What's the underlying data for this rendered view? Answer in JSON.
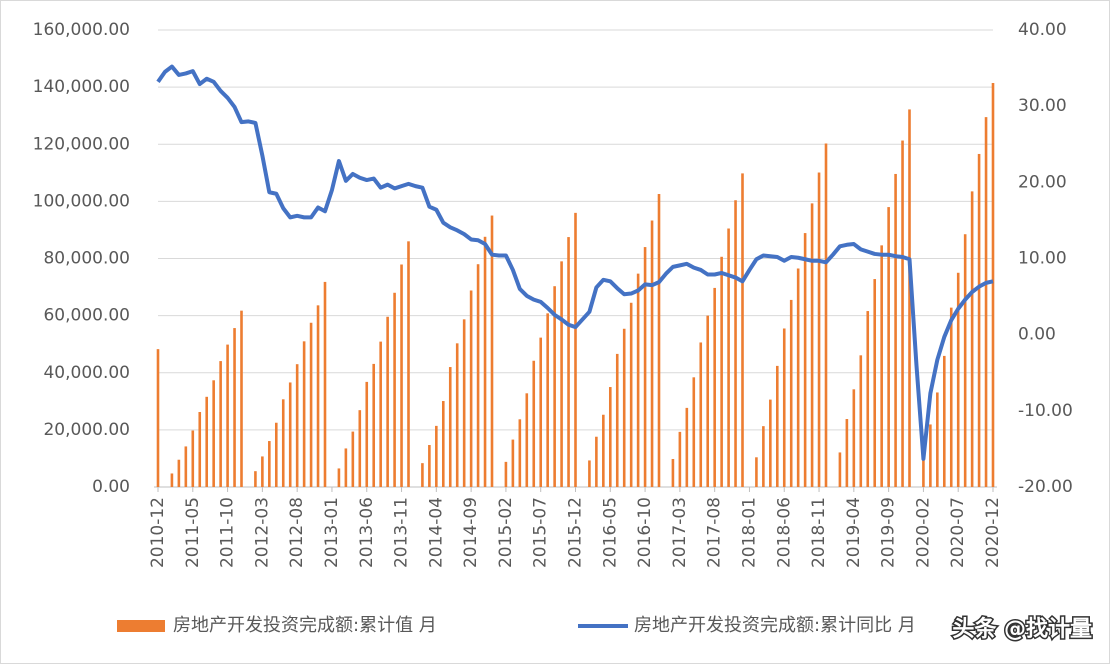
{
  "chart_data": {
    "type": "combo",
    "categories": [
      "2010-12",
      null,
      null,
      null,
      null,
      "2011-05",
      null,
      null,
      null,
      null,
      "2011-10",
      null,
      null,
      null,
      null,
      "2012-03",
      null,
      null,
      null,
      null,
      "2012-08",
      null,
      null,
      null,
      null,
      "2013-01",
      null,
      null,
      null,
      null,
      "2013-06",
      null,
      null,
      null,
      null,
      "2013-11",
      null,
      null,
      null,
      null,
      "2014-04",
      null,
      null,
      null,
      null,
      "2014-09",
      null,
      null,
      null,
      null,
      "2015-02",
      null,
      null,
      null,
      null,
      "2015-07",
      null,
      null,
      null,
      null,
      "2015-12",
      null,
      null,
      null,
      null,
      "2016-05",
      null,
      null,
      null,
      null,
      "2016-10",
      null,
      null,
      null,
      null,
      "2017-03",
      null,
      null,
      null,
      null,
      "2017-08",
      null,
      null,
      null,
      null,
      "2018-01",
      null,
      null,
      null,
      null,
      "2018-06",
      null,
      null,
      null,
      null,
      "2018-11",
      null,
      null,
      null,
      null,
      "2019-04",
      null,
      null,
      null,
      null,
      "2019-09",
      null,
      null,
      null,
      null,
      "2020-02",
      null,
      null,
      null,
      null,
      "2020-07",
      null,
      null,
      null,
      null,
      "2020-12"
    ],
    "series": [
      {
        "name": "房地产开发投资完成额:累计值 月",
        "type": "bar",
        "color": "#ed7d31",
        "values": [
          48267,
          null,
          4738,
          9547,
          14205,
          19776,
          26256,
          31575,
          37359,
          44082,
          49860,
          55642,
          61740,
          null,
          5538,
          10700,
          16090,
          22500,
          30700,
          36600,
          43000,
          51000,
          57500,
          63600,
          71804,
          null,
          6500,
          13500,
          19400,
          26900,
          36800,
          43100,
          50900,
          59600,
          68000,
          77900,
          86013,
          null,
          8350,
          14700,
          21400,
          30100,
          42000,
          50300,
          58700,
          68800,
          78000,
          87600,
          95036,
          null,
          8800,
          16600,
          23700,
          32800,
          44200,
          52300,
          60800,
          70300,
          79000,
          87500,
          95979,
          null,
          9300,
          17600,
          25300,
          35000,
          46600,
          55400,
          64500,
          74700,
          84000,
          93300,
          102581,
          null,
          9800,
          19300,
          27700,
          38400,
          50600,
          60000,
          69700,
          80600,
          90500,
          100400,
          109799,
          null,
          10400,
          21300,
          30600,
          42400,
          55500,
          65500,
          76500,
          88900,
          99300,
          110100,
          120264,
          null,
          12100,
          23800,
          34200,
          46100,
          61600,
          72800,
          84600,
          98000,
          109600,
          121300,
          132194,
          null,
          10100,
          21900,
          33100,
          45900,
          62800,
          75000,
          88500,
          103500,
          116600,
          129500,
          141443
        ]
      },
      {
        "name": "房地产开发投资完成额:累计同比 月",
        "type": "line",
        "axis": "y2",
        "color": "#4472c4",
        "values": [
          33.2,
          34.5,
          35.2,
          34.1,
          34.3,
          34.6,
          32.9,
          33.6,
          33.2,
          32.0,
          31.1,
          29.9,
          27.9,
          28.0,
          27.8,
          23.5,
          18.7,
          18.5,
          16.6,
          15.4,
          15.6,
          15.4,
          15.4,
          16.7,
          16.2,
          19.0,
          22.8,
          20.2,
          21.1,
          20.6,
          20.3,
          20.5,
          19.3,
          19.7,
          19.2,
          19.5,
          19.8,
          19.5,
          19.3,
          16.8,
          16.4,
          14.7,
          14.1,
          13.7,
          13.2,
          12.5,
          12.4,
          11.9,
          10.5,
          10.4,
          10.4,
          8.5,
          6.0,
          5.1,
          4.6,
          4.3,
          3.5,
          2.6,
          2.0,
          1.3,
          1.0,
          2.0,
          3.0,
          6.2,
          7.2,
          7.0,
          6.1,
          5.3,
          5.4,
          5.8,
          6.6,
          6.5,
          6.9,
          8.0,
          8.9,
          9.1,
          9.3,
          8.8,
          8.5,
          7.9,
          7.9,
          8.1,
          7.8,
          7.5,
          7.0,
          8.5,
          9.9,
          10.4,
          10.3,
          10.2,
          9.7,
          10.2,
          10.1,
          9.9,
          9.7,
          9.7,
          9.5,
          10.5,
          11.6,
          11.8,
          11.9,
          11.2,
          10.9,
          10.6,
          10.5,
          10.5,
          10.3,
          10.2,
          9.9,
          -4.0,
          -16.3,
          -7.7,
          -3.3,
          -0.3,
          1.9,
          3.4,
          4.6,
          5.6,
          6.3,
          6.8,
          7.0
        ]
      }
    ],
    "ylim": [
      0,
      160000
    ],
    "yticks": [
      {
        "value": 0,
        "label": "0.00"
      },
      {
        "value": 20000,
        "label": "20,000.00"
      },
      {
        "value": 40000,
        "label": "40,000.00"
      },
      {
        "value": 60000,
        "label": "60,000.00"
      },
      {
        "value": 80000,
        "label": "80,000.00"
      },
      {
        "value": 100000,
        "label": "100,000.00"
      },
      {
        "value": 120000,
        "label": "120,000.00"
      },
      {
        "value": 140000,
        "label": "140,000.00"
      },
      {
        "value": 160000,
        "label": "160,000.00"
      }
    ],
    "y2lim": [
      -20,
      40
    ],
    "y2ticks": [
      {
        "value": -20,
        "label": "-20.00"
      },
      {
        "value": -10,
        "label": "-10.00"
      },
      {
        "value": 0,
        "label": "0.00"
      },
      {
        "value": 10,
        "label": "10.00"
      },
      {
        "value": 20,
        "label": "20.00"
      },
      {
        "value": 30,
        "label": "30.00"
      },
      {
        "value": 40,
        "label": "40.00"
      }
    ],
    "grid": true,
    "legend": "bottom",
    "annotations": [
      "头条 @找计量"
    ]
  }
}
